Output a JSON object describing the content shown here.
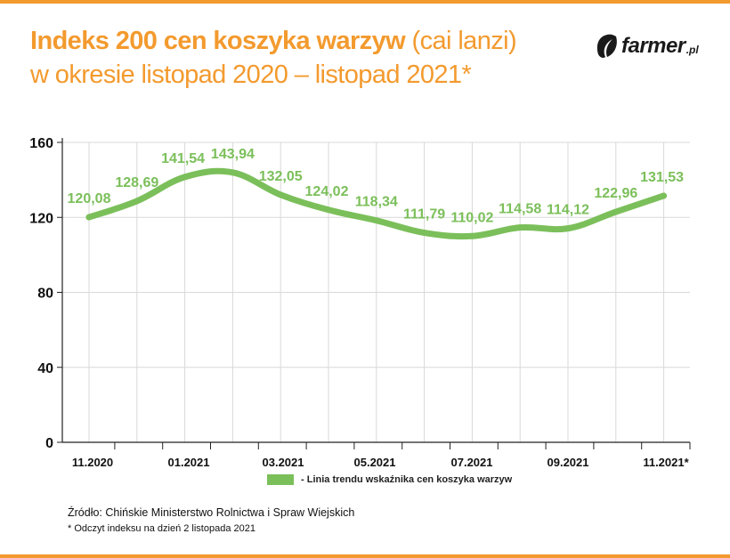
{
  "header": {
    "title_bold": "Indeks 200 cen koszyka warzyw",
    "title_normal": " (cai lanzi)",
    "title_line2": "w okresie listopad 2020 – listopad 2021*"
  },
  "logo": {
    "text": "farmer",
    "suffix": ".pl"
  },
  "footer": {
    "source": "Źródło: Chińskie Ministerstwo Rolnictwa i Spraw Wiejskich",
    "note": "* Odczyt indeksu na dzień 2 listopada 2021"
  },
  "chart_data": {
    "type": "line",
    "x": [
      "11.2020",
      "12.2020",
      "01.2021",
      "02.2021",
      "03.2021",
      "04.2021",
      "05.2021",
      "06.2021",
      "07.2021",
      "08.2021",
      "09.2021",
      "10.2021",
      "11.2021*"
    ],
    "x_tick_labels": [
      "11.2020",
      "",
      "01.2021",
      "",
      "03.2021",
      "",
      "05.2021",
      "",
      "07.2021",
      "",
      "09.2021",
      "",
      "11.2021*"
    ],
    "series": [
      {
        "name": "- Linia trendu wskaźnika cen koszyka warzyw",
        "values": [
          120.08,
          128.69,
          141.54,
          143.94,
          132.05,
          124.02,
          118.34,
          111.79,
          110.02,
          114.58,
          114.12,
          122.96,
          131.53
        ],
        "labels": [
          "120,08",
          "128,69",
          "141,54",
          "143,94",
          "132,05",
          "124,02",
          "118,34",
          "111,79",
          "110,02",
          "114,58",
          "114,12",
          "122,96",
          "131,53"
        ]
      }
    ],
    "y_ticks": [
      0,
      40,
      80,
      120,
      160
    ],
    "ylim": [
      0,
      160
    ],
    "grid": true,
    "legend_position": "bottom",
    "colors": {
      "line": "#7bbf5a",
      "label": "#7bbf5a",
      "grid": "#d9d9d9",
      "axis": "#222222",
      "accent": "#f39a2e"
    }
  }
}
